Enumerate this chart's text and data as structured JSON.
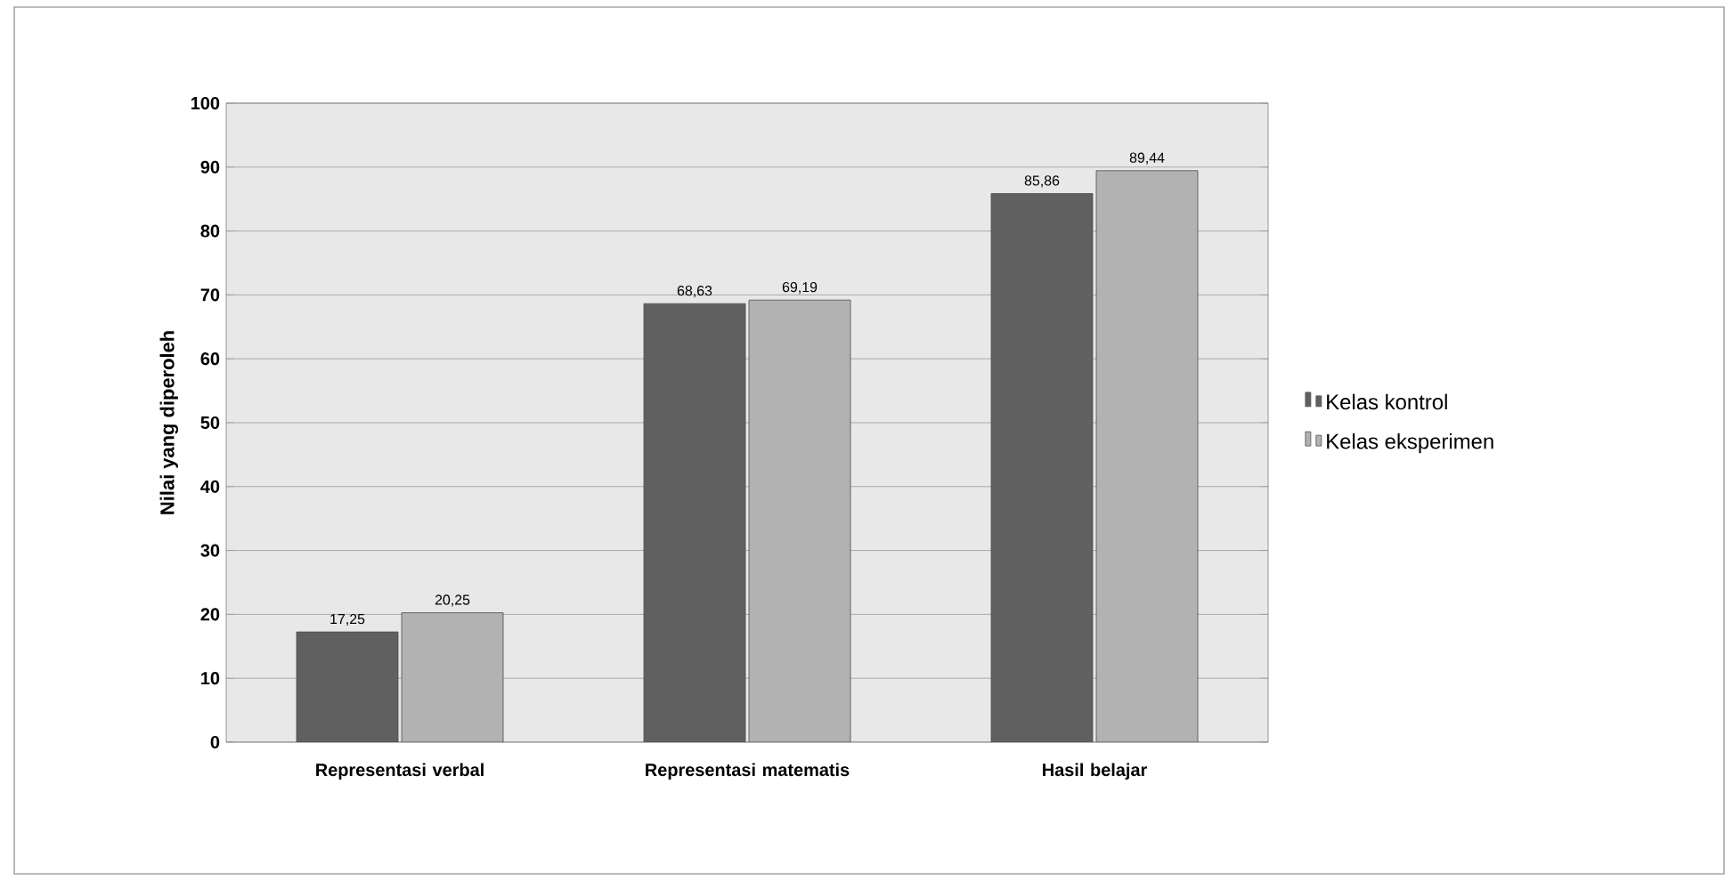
{
  "chart_data": {
    "type": "bar",
    "ylabel": "Nilai yang diperoleh",
    "categories": [
      "Representasi verbal",
      "Representasi matematis",
      "Hasil belajar"
    ],
    "series": [
      {
        "name": "Kelas kontrol",
        "color": "#606060",
        "values": [
          17.25,
          68.63,
          85.86
        ],
        "value_labels": [
          "17,25",
          "68,63",
          "85,86"
        ]
      },
      {
        "name": "Kelas eksperimen",
        "color": "#b2b2b2",
        "values": [
          20.25,
          69.19,
          89.44
        ],
        "value_labels": [
          "20,25",
          "69,19",
          "89,44"
        ]
      }
    ],
    "ylim": [
      0,
      100
    ],
    "yticks": [
      0,
      10,
      20,
      30,
      40,
      50,
      60,
      70,
      80,
      90,
      100
    ],
    "grid": "y",
    "legend": "right"
  }
}
